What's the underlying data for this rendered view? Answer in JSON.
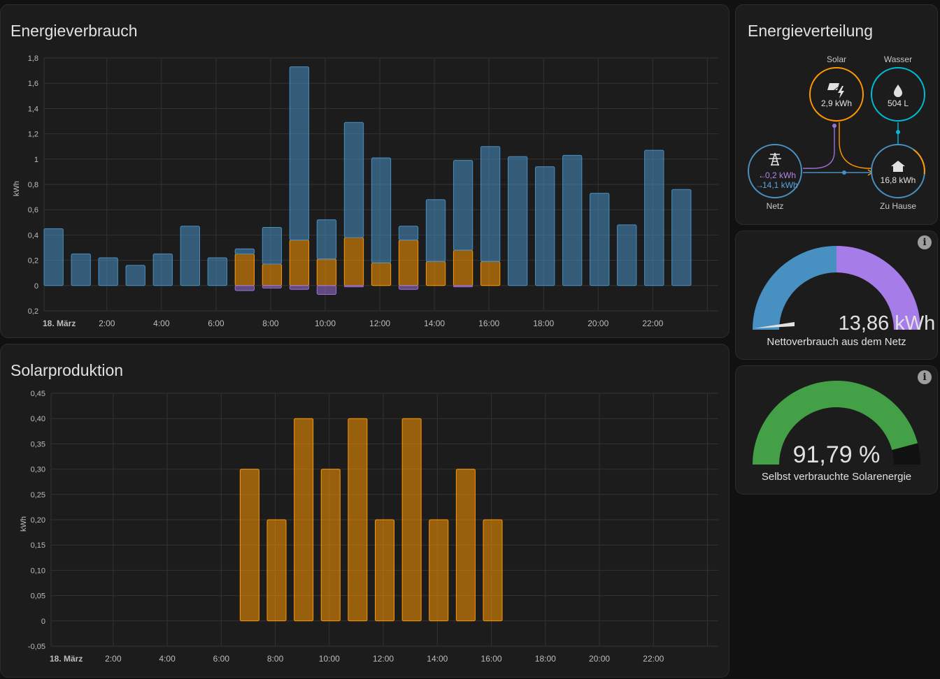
{
  "cards": {
    "consumption": {
      "title": "Energieverbrauch",
      "chart_data": {
        "type": "bar",
        "ylabel": "kWh",
        "ylim": [
          -0.2,
          1.8
        ],
        "y_ticks": [
          {
            "v": 1.8,
            "label": "1,8"
          },
          {
            "v": 1.6,
            "label": "1,6"
          },
          {
            "v": 1.4,
            "label": "1,4"
          },
          {
            "v": 1.2,
            "label": "1,2"
          },
          {
            "v": 1.0,
            "label": "1"
          },
          {
            "v": 0.8,
            "label": "0,8"
          },
          {
            "v": 0.6,
            "label": "0,6"
          },
          {
            "v": 0.4,
            "label": "0,4"
          },
          {
            "v": 0.2,
            "label": "0,2"
          },
          {
            "v": 0.0,
            "label": "0"
          },
          {
            "v": -0.2,
            "label": "0,2"
          }
        ],
        "x_ticks": [
          "18. März",
          "2:00",
          "4:00",
          "6:00",
          "8:00",
          "10:00",
          "12:00",
          "14:00",
          "16:00",
          "18:00",
          "20:00",
          "22:00"
        ],
        "hours": [
          0,
          1,
          2,
          3,
          4,
          5,
          6,
          7,
          8,
          9,
          10,
          11,
          12,
          13,
          14,
          15,
          16,
          17,
          18,
          19,
          20,
          21,
          22,
          23
        ],
        "series": [
          {
            "role": "solar",
            "color": "#ff9800",
            "values": [
              0,
              0,
              0,
              0,
              0,
              0,
              0,
              0.25,
              0.17,
              0.36,
              0.21,
              0.38,
              0.18,
              0.36,
              0.19,
              0.28,
              0.19,
              0,
              0,
              0,
              0,
              0,
              0,
              0
            ]
          },
          {
            "role": "grid",
            "color": "#488fc2",
            "values": [
              0.45,
              0.25,
              0.22,
              0.16,
              0.25,
              0.47,
              0.22,
              0.04,
              0.29,
              1.37,
              0.31,
              0.91,
              0.83,
              0.11,
              0.49,
              0.71,
              0.91,
              1.02,
              0.94,
              1.03,
              0.73,
              0.48,
              1.07,
              0.76
            ]
          },
          {
            "role": "return",
            "color": "#9b71d6",
            "values": [
              0,
              0,
              0,
              0,
              0,
              0,
              0,
              -0.04,
              -0.02,
              -0.03,
              -0.07,
              -0.01,
              0,
              -0.03,
              0,
              -0.01,
              0,
              0,
              0,
              0,
              0,
              0,
              0,
              0
            ]
          }
        ]
      }
    },
    "solar": {
      "title": "Solarproduktion",
      "chart_data": {
        "type": "bar",
        "ylabel": "kWh",
        "ylim": [
          -0.05,
          0.45
        ],
        "y_ticks": [
          {
            "v": 0.45,
            "label": "0,45"
          },
          {
            "v": 0.4,
            "label": "0,40"
          },
          {
            "v": 0.35,
            "label": "0,35"
          },
          {
            "v": 0.3,
            "label": "0,30"
          },
          {
            "v": 0.25,
            "label": "0,25"
          },
          {
            "v": 0.2,
            "label": "0,20"
          },
          {
            "v": 0.15,
            "label": "0,15"
          },
          {
            "v": 0.1,
            "label": "0,10"
          },
          {
            "v": 0.05,
            "label": "0,05"
          },
          {
            "v": 0.0,
            "label": "0"
          },
          {
            "v": -0.05,
            "label": "-0,05"
          }
        ],
        "x_ticks": [
          "18. März",
          "2:00",
          "4:00",
          "6:00",
          "8:00",
          "10:00",
          "12:00",
          "14:00",
          "16:00",
          "18:00",
          "20:00",
          "22:00"
        ],
        "hours": [
          0,
          1,
          2,
          3,
          4,
          5,
          6,
          7,
          8,
          9,
          10,
          11,
          12,
          13,
          14,
          15,
          16,
          17,
          18,
          19,
          20,
          21,
          22,
          23
        ],
        "series": [
          {
            "color": "#ff9800",
            "values": [
              0,
              0,
              0,
              0,
              0,
              0,
              0,
              0.3,
              0.2,
              0.4,
              0.3,
              0.4,
              0.2,
              0.4,
              0.2,
              0.3,
              0.2,
              0,
              0,
              0,
              0,
              0,
              0,
              0
            ]
          }
        ]
      }
    },
    "distribution": {
      "title": "Energieverteilung",
      "solar": {
        "label": "Solar",
        "value": "2,9 kWh",
        "color": "#ff9800"
      },
      "water": {
        "label": "Wasser",
        "value": "504 L",
        "color": "#00bcd4"
      },
      "grid": {
        "label": "Netz",
        "return_value": "0,2 kWh",
        "consumption_value": "14,1 kWh",
        "color": "#488fc2",
        "return_color": "#9b71d6"
      },
      "home": {
        "label": "Zu Hause",
        "value": "16,8 kWh"
      }
    },
    "net_gauge": {
      "value": "13,86 kWh",
      "label": "Nettoverbrauch aus dem Netz",
      "grid_fraction": 0.5,
      "grid_color": "#488fc2",
      "return_color": "#a67de8"
    },
    "self_gauge": {
      "value": "91,79 %",
      "label": "Selbst verbrauchte Solarenergie",
      "percent": 91.79,
      "color": "#43a047",
      "rest_color": "#111111"
    }
  }
}
